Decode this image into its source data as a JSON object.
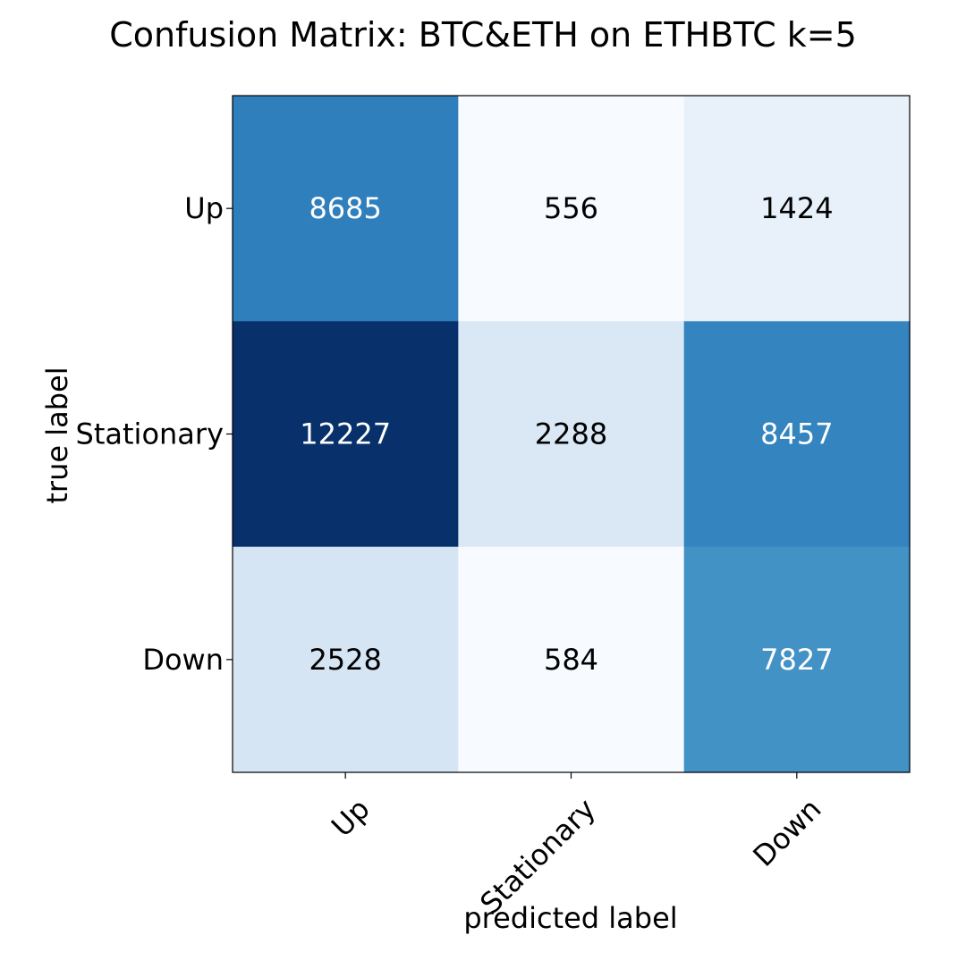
{
  "chart_data": {
    "type": "heatmap",
    "title": "Confusion Matrix: BTC&ETH on ETHBTC k=5",
    "xlabel": "predicted label",
    "ylabel": "true label",
    "x_categories": [
      "Up",
      "Stationary",
      "Down"
    ],
    "y_categories": [
      "Up",
      "Stationary",
      "Down"
    ],
    "values": [
      [
        8685,
        556,
        1424
      ],
      [
        12227,
        2288,
        8457
      ],
      [
        2528,
        584,
        7827
      ]
    ],
    "colormap": "Blues",
    "vmin": 556,
    "vmax": 12227,
    "colormap_stops": [
      "#f7fbff",
      "#deebf7",
      "#c6dbef",
      "#9ecae1",
      "#6baed6",
      "#4292c6",
      "#2171b5",
      "#08519c",
      "#08306b"
    ],
    "light_text_color": "#ffffff",
    "dark_text_color": "#000000",
    "x_tick_rotation_deg": -45,
    "grid": false,
    "legend": "none"
  }
}
